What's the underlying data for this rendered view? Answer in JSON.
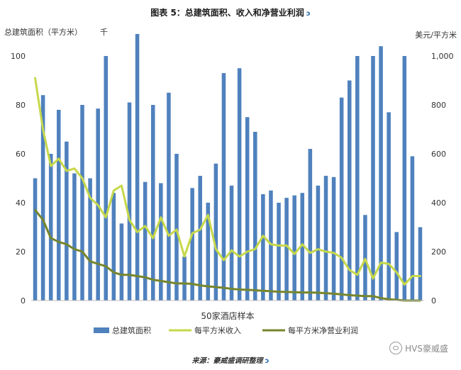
{
  "title": "图表 5：总建筑面积、收入和净营业利润",
  "title_mark": "ↄ",
  "source": "来源：豪威盛调研整理",
  "source_mark": "ↄ",
  "watermark": "HVS豪威盛",
  "chart_data": {
    "type": "bar+line",
    "title": "图表 5：总建筑面积、收入和净营业利润",
    "xlabel": "50家酒店样本",
    "ylabel_left": "总建筑面积（平方米）",
    "ylabel_left_unit": "千",
    "ylabel_right": "美元/平方米",
    "ylim_left": [
      0,
      100
    ],
    "ylim_right": [
      0,
      1000
    ],
    "left_ticks": [
      "0",
      "20",
      "40",
      "60",
      "80",
      "100"
    ],
    "right_ticks": [
      "0",
      "200",
      "400",
      "600",
      "800",
      "1,000"
    ],
    "legend_position": "bottom",
    "colors": {
      "bars": "#4f81bd",
      "revenue": "#c6d84a",
      "profit": "#76852c",
      "axis": "#bfbfbf"
    },
    "series": [
      {
        "name": "总建筑面积",
        "type": "bar",
        "axis": "left",
        "values": [
          50,
          84,
          60,
          78,
          65,
          52,
          80,
          50,
          78.5,
          100,
          44,
          31.5,
          81,
          109,
          48.5,
          80,
          48,
          85,
          60,
          18,
          46,
          51,
          40,
          56,
          93,
          47,
          95,
          75,
          69,
          43.5,
          45,
          40,
          42,
          43,
          44,
          62,
          47,
          51,
          50.5,
          83,
          90,
          100,
          35,
          100,
          104,
          77,
          28,
          100,
          59,
          30
        ]
      },
      {
        "name": "每平方米收入",
        "type": "line",
        "axis": "right",
        "values": [
          910,
          700,
          550,
          580,
          530,
          540,
          500,
          420,
          390,
          340,
          450,
          470,
          330,
          280,
          305,
          255,
          340,
          265,
          290,
          180,
          275,
          290,
          350,
          210,
          165,
          205,
          180,
          200,
          210,
          265,
          230,
          225,
          225,
          190,
          230,
          195,
          210,
          200,
          195,
          175,
          125,
          105,
          170,
          90,
          155,
          150,
          115,
          65,
          100,
          100
        ]
      },
      {
        "name": "每平方米净营业利润",
        "type": "line",
        "axis": "right",
        "values": [
          370,
          330,
          255,
          240,
          230,
          210,
          200,
          160,
          150,
          140,
          115,
          105,
          105,
          100,
          95,
          85,
          80,
          75,
          70,
          70,
          68,
          62,
          58,
          55,
          52,
          48,
          45,
          44,
          42,
          40,
          38,
          36,
          35,
          34,
          33,
          33,
          32,
          30,
          28,
          25,
          22,
          20,
          18,
          18,
          10,
          5,
          3,
          0,
          0,
          0
        ]
      }
    ]
  }
}
